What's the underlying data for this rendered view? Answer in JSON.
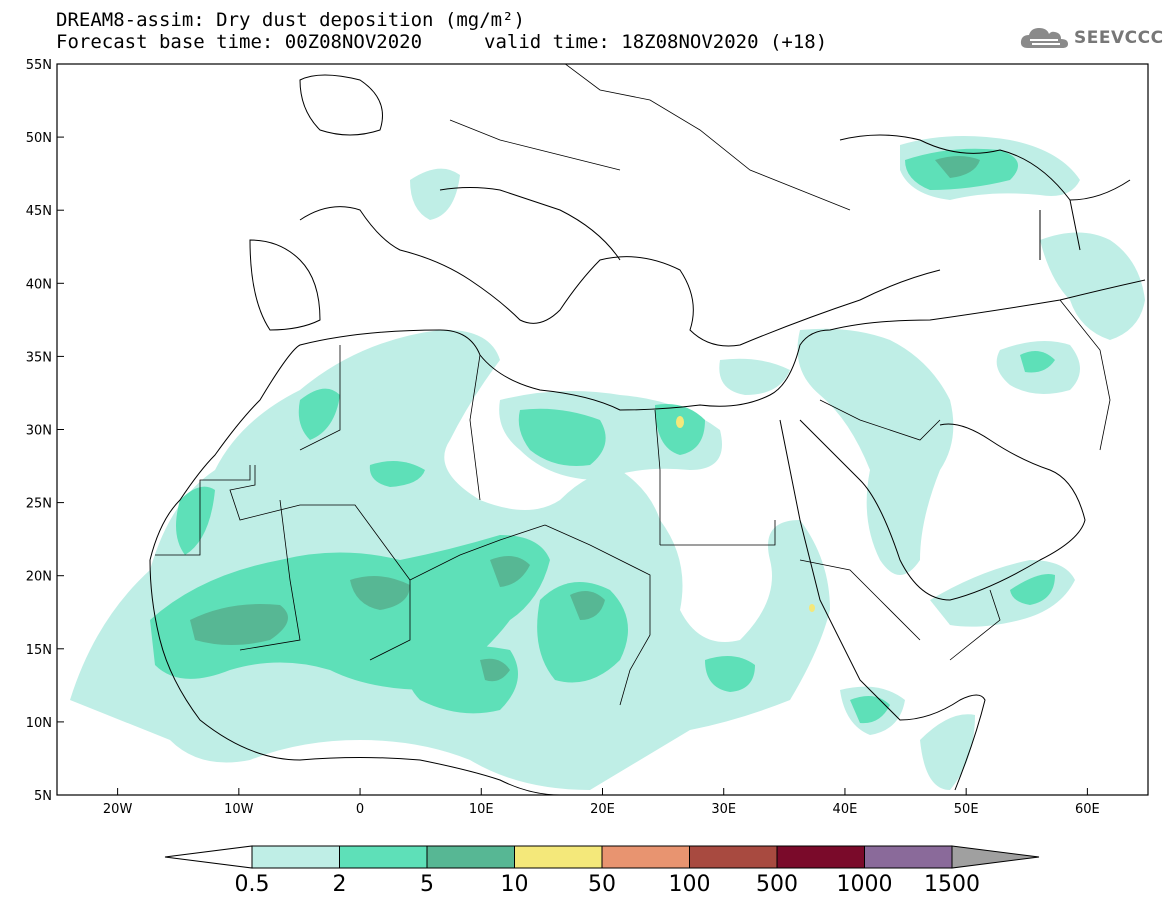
{
  "header": {
    "title": "DREAM8-assim: Dry dust deposition (mg/m²)",
    "base_time": "Forecast base time: 00Z08NOV2020",
    "valid_time": "valid time: 18Z08NOV2020 (+18)",
    "logo_text": "SEEVCCC"
  },
  "map": {
    "lon_range": [
      -25,
      65
    ],
    "lat_range": [
      5,
      55
    ],
    "lon_ticks": [
      {
        "value": -20,
        "label": "20W"
      },
      {
        "value": -10,
        "label": "10W"
      },
      {
        "value": 0,
        "label": "0"
      },
      {
        "value": 10,
        "label": "10E"
      },
      {
        "value": 20,
        "label": "20E"
      },
      {
        "value": 30,
        "label": "30E"
      },
      {
        "value": 40,
        "label": "40E"
      },
      {
        "value": 50,
        "label": "50E"
      },
      {
        "value": 60,
        "label": "60E"
      }
    ],
    "lat_ticks": [
      {
        "value": 55,
        "label": "55N"
      },
      {
        "value": 50,
        "label": "50N"
      },
      {
        "value": 45,
        "label": "45N"
      },
      {
        "value": 40,
        "label": "40N"
      },
      {
        "value": 35,
        "label": "35N"
      },
      {
        "value": 30,
        "label": "30N"
      },
      {
        "value": 25,
        "label": "25N"
      },
      {
        "value": 20,
        "label": "20N"
      },
      {
        "value": 15,
        "label": "15N"
      },
      {
        "value": 10,
        "label": "10N"
      },
      {
        "value": 5,
        "label": "5N"
      }
    ]
  },
  "legend": {
    "labels": [
      "0.5",
      "2",
      "5",
      "10",
      "50",
      "100",
      "500",
      "1000",
      "1500"
    ],
    "colors": [
      "#bfeee6",
      "#5ee0b8",
      "#57b794",
      "#f4e87a",
      "#e89470",
      "#a84a40",
      "#7a0a2a",
      "#8a6a9a"
    ],
    "low_arrow_color": "#ffffff",
    "high_arrow_color": "#a0a0a0"
  },
  "colors": {
    "level_0_5": "#bfeee6",
    "level_2": "#5ee0b8",
    "level_5": "#57b794",
    "level_10": "#f4e87a"
  }
}
